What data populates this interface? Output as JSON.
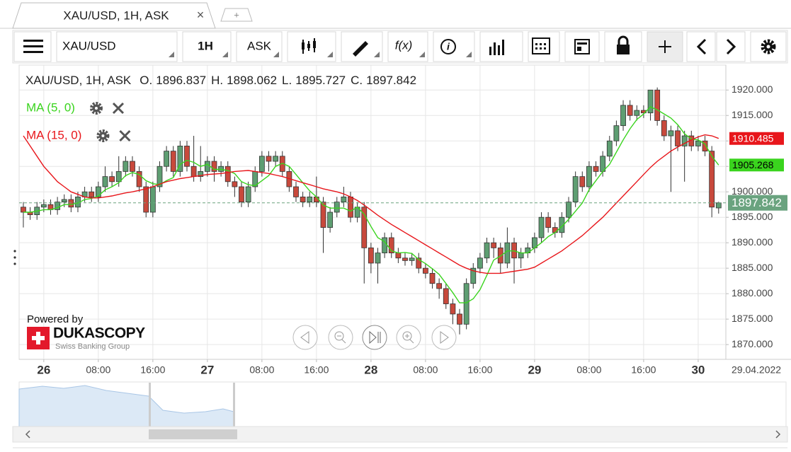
{
  "tab": {
    "title": "XAU/USD, 1H, ASK",
    "close": "×",
    "add": "+"
  },
  "toolbar": {
    "instrument": "XAU/USD",
    "period": "1H",
    "side": "ASK",
    "function": "f(x)",
    "info": "i"
  },
  "chart_data": {
    "type": "candlestick",
    "instrument_label": "XAU/USD, 1H, ASK",
    "ohlc_prefixes": [
      "O.",
      "H.",
      "L.",
      "C."
    ],
    "up_color": "#5e9e72",
    "down_color": "#c8493c",
    "candles": {
      "open": [
        1897,
        1896,
        1895.5,
        1897,
        1897.5,
        1896.5,
        1898,
        1898.5,
        1897,
        1899,
        1900,
        1899,
        1901,
        1903,
        1902,
        1904,
        1906,
        1904,
        1901,
        1896,
        1901,
        1905,
        1908,
        1904,
        1909,
        1905,
        1903,
        1904,
        1906,
        1904,
        1905,
        1902,
        1901,
        1898,
        1901,
        1904,
        1907,
        1906,
        1907,
        1904,
        1901,
        1899,
        1898,
        1899,
        1898,
        1893,
        1896,
        1898,
        1899,
        1895,
        1897,
        1889,
        1886,
        1888,
        1891,
        1888,
        1887,
        1886.5,
        1887,
        1885,
        1884,
        1882,
        1881,
        1878,
        1876,
        1874,
        1882,
        1885,
        1887,
        1890,
        1889,
        1886,
        1890,
        1887,
        1888,
        1889,
        1891,
        1895,
        1893,
        1892,
        1895,
        1898,
        1903,
        1901,
        1905,
        1904,
        1907,
        1910,
        1913,
        1917,
        1915,
        1916,
        1915.5,
        1920,
        1914,
        1911,
        1912,
        1909,
        1911,
        1909,
        1910,
        1908,
        1896.837
      ],
      "high": [
        1898,
        1897,
        1898,
        1898.5,
        1898.5,
        1899,
        1899.5,
        1899.5,
        1900,
        1901,
        1901,
        1902,
        1905,
        1904,
        1907,
        1907,
        1907,
        1905,
        1902,
        1902,
        1906,
        1909,
        1909,
        1910,
        1910,
        1911,
        1909,
        1907,
        1907,
        1906,
        1906,
        1903,
        1902,
        1902,
        1905,
        1908,
        1908,
        1908,
        1908,
        1905,
        1902,
        1900,
        1900,
        1903,
        1899,
        1897,
        1899,
        1901,
        1900,
        1898,
        1898,
        1890,
        1889,
        1892,
        1892,
        1889,
        1888,
        1888,
        1888,
        1886,
        1885,
        1883,
        1882,
        1879,
        1877,
        1883,
        1886,
        1888,
        1891,
        1891,
        1890,
        1893,
        1891,
        1889,
        1890,
        1892,
        1896,
        1896,
        1894,
        1896,
        1899,
        1904,
        1904,
        1906,
        1906,
        1908,
        1911,
        1914,
        1918,
        1918,
        1917,
        1917,
        1920,
        1920.5,
        1915,
        1913,
        1913,
        1912,
        1912,
        1911,
        1911,
        1909,
        1898.062
      ],
      "low": [
        1893,
        1894.5,
        1894.5,
        1896,
        1895.5,
        1895.5,
        1897,
        1896,
        1896,
        1898,
        1898,
        1898,
        1900,
        1901,
        1901,
        1903,
        1903,
        1900,
        1895,
        1895,
        1900,
        1904,
        1903,
        1903,
        1904,
        1902,
        1902,
        1903,
        1902,
        1903,
        1901,
        1899,
        1897,
        1897,
        1900,
        1903,
        1904,
        1905,
        1903,
        1900,
        1898,
        1897,
        1897,
        1897,
        1888,
        1892,
        1895,
        1897,
        1894,
        1894,
        1882,
        1884,
        1882,
        1887,
        1887,
        1886,
        1885.5,
        1885.5,
        1884,
        1883,
        1881,
        1879,
        1877,
        1874,
        1872,
        1873,
        1881,
        1884,
        1886,
        1887,
        1884,
        1885,
        1882,
        1885,
        1887,
        1888,
        1890,
        1892,
        1891,
        1891,
        1894,
        1897,
        1900,
        1900,
        1903,
        1903,
        1906,
        1909,
        1912,
        1914,
        1914,
        1914.5,
        1914,
        1913,
        1910,
        1900,
        1908,
        1902,
        1908,
        1908,
        1907,
        1895,
        1895.727
      ],
      "close": [
        1896,
        1895.5,
        1897,
        1897.5,
        1896.5,
        1898,
        1898.5,
        1897,
        1899,
        1900,
        1899,
        1901,
        1903,
        1902,
        1904,
        1906,
        1904,
        1901,
        1896,
        1901,
        1905,
        1908,
        1904,
        1909,
        1905,
        1903,
        1904,
        1906,
        1904,
        1905,
        1902,
        1901,
        1898,
        1901,
        1904,
        1907,
        1906,
        1907,
        1904,
        1901,
        1899,
        1898,
        1899,
        1898,
        1893,
        1896,
        1898,
        1899,
        1895,
        1897,
        1889,
        1886,
        1888,
        1891,
        1888,
        1887,
        1886.5,
        1887,
        1885,
        1884,
        1882,
        1881,
        1878,
        1876,
        1874,
        1882,
        1885,
        1887,
        1890,
        1889,
        1886,
        1890,
        1887,
        1888,
        1889,
        1891,
        1895,
        1893,
        1892,
        1895,
        1898,
        1903,
        1901,
        1905,
        1904,
        1907,
        1910,
        1913,
        1917,
        1915,
        1916,
        1915.5,
        1920,
        1914,
        1911,
        1912,
        1909,
        1911,
        1909,
        1910,
        1908,
        1897,
        1897.842
      ]
    },
    "close_color": "#6aa37f",
    "indicators": [
      {
        "name": "MA (5, 0)",
        "color": "#3ad41e",
        "text_color": "#000000",
        "values": [
          1896,
          1896,
          1896.2,
          1896.5,
          1896.5,
          1896.9,
          1897.5,
          1897.5,
          1897.8,
          1898.5,
          1898.7,
          1899.2,
          1900.4,
          1901,
          1901.8,
          1903.2,
          1903.8,
          1903.4,
          1902.2,
          1901.6,
          1901.4,
          1902.2,
          1902.8,
          1905.4,
          1906.2,
          1905.8,
          1905,
          1905.4,
          1904.4,
          1904.4,
          1904.2,
          1903.6,
          1902,
          1901.4,
          1901.2,
          1902.2,
          1903.2,
          1905,
          1905.6,
          1905,
          1903.4,
          1901.8,
          1900.2,
          1899,
          1897.4,
          1896.8,
          1896.8,
          1896.8,
          1896.2,
          1897,
          1895.6,
          1893.2,
          1891,
          1890.2,
          1888.4,
          1888,
          1888.1,
          1887.9,
          1886.7,
          1885.9,
          1884.9,
          1883.8,
          1882,
          1880.2,
          1878.2,
          1878.2,
          1879,
          1880.8,
          1883.6,
          1886.6,
          1887.4,
          1888.4,
          1888.4,
          1888,
          1888,
          1889,
          1890,
          1891.2,
          1892,
          1893.2,
          1894.6,
          1896.2,
          1897.8,
          1900.4,
          1902.2,
          1904,
          1905.4,
          1907.8,
          1910.2,
          1912.4,
          1914.2,
          1915.3,
          1916.7,
          1916.1,
          1915.3,
          1914.5,
          1913.2,
          1911.4,
          1910.4,
          1910.2,
          1909.4,
          1907,
          1905.268
        ]
      },
      {
        "name": "MA (15, 0)",
        "color": "#e8161b",
        "text_color": "#ffffff",
        "values": [
          1911,
          1909,
          1907,
          1905,
          1903.5,
          1902,
          1901,
          1900,
          1899.5,
          1899,
          1898.8,
          1898.8,
          1899,
          1899.2,
          1899.5,
          1899.8,
          1900,
          1900.3,
          1900.6,
          1901,
          1901.5,
          1902,
          1902.3,
          1902.6,
          1902.8,
          1903,
          1903.2,
          1903.4,
          1903.5,
          1903.6,
          1903.8,
          1904,
          1904.1,
          1904.2,
          1904,
          1903.8,
          1903.6,
          1903.3,
          1903,
          1902.6,
          1902.2,
          1901.8,
          1901.4,
          1901,
          1900.6,
          1900.3,
          1900,
          1899.6,
          1899,
          1898.3,
          1897.4,
          1896.4,
          1895.4,
          1894.5,
          1893.6,
          1892.8,
          1892,
          1891.2,
          1890.4,
          1889.6,
          1888.8,
          1888,
          1887.2,
          1886.4,
          1885.6,
          1885,
          1884.5,
          1884.2,
          1884,
          1884,
          1884,
          1884.2,
          1884.4,
          1884.6,
          1884.8,
          1885.2,
          1886,
          1886.8,
          1887.6,
          1888.4,
          1889.4,
          1890.4,
          1891.4,
          1892.6,
          1893.8,
          1895,
          1896.4,
          1897.8,
          1899.2,
          1900.6,
          1902,
          1903.4,
          1904.8,
          1906,
          1907,
          1908,
          1908.8,
          1909.5,
          1910.2,
          1910.8,
          1911.2,
          1911,
          1910.485
        ]
      }
    ],
    "ylim": [
      1867.1,
      1924.9
    ],
    "yticks": [
      {
        "value": 1870,
        "label": "1870.000"
      },
      {
        "value": 1875,
        "label": "1875.000"
      },
      {
        "value": 1880,
        "label": "1880.000"
      },
      {
        "value": 1885,
        "label": "1885.000"
      },
      {
        "value": 1890,
        "label": "1890.000"
      },
      {
        "value": 1895,
        "label": "1895.000"
      },
      {
        "value": 1900,
        "label": "1900.000"
      },
      {
        "value": 1905,
        "label": "1905.000"
      },
      {
        "value": 1910,
        "label": "1910.000"
      },
      {
        "value": 1915,
        "label": "1915.000"
      },
      {
        "value": 1920,
        "label": "1920.000"
      }
    ],
    "xlim": [
      -0.62,
      103.06
    ],
    "xticks": [
      {
        "value": 3,
        "label": "26"
      },
      {
        "value": 11,
        "label": "08:00"
      },
      {
        "value": 19,
        "label": "16:00"
      },
      {
        "value": 27,
        "label": "27"
      },
      {
        "value": 35,
        "label": "08:00"
      },
      {
        "value": 43,
        "label": "16:00"
      },
      {
        "value": 51,
        "label": "28"
      },
      {
        "value": 59,
        "label": "08:00"
      },
      {
        "value": 67,
        "label": "16:00"
      },
      {
        "value": 75,
        "label": "29"
      },
      {
        "value": 83,
        "label": "08:00"
      },
      {
        "value": 91,
        "label": "16:00"
      },
      {
        "value": 99,
        "label": "30"
      }
    ],
    "date_label": "29.04.2022",
    "grid": true
  },
  "branding": {
    "powered": "Powered by",
    "brand": "DUKASCOPY",
    "tagline": "Swiss Banking Group"
  }
}
